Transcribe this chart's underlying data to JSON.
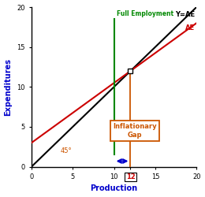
{
  "title": "",
  "xlabel": "Production",
  "ylabel": "Expenditures",
  "xlim": [
    0,
    20
  ],
  "ylim": [
    0,
    20
  ],
  "xticks": [
    0,
    5,
    10,
    15,
    20
  ],
  "yticks": [
    0,
    5,
    10,
    15,
    20
  ],
  "ytick_labels": [
    "0",
    "5",
    "10",
    "15",
    "20"
  ],
  "yae_slope": 1.0,
  "yae_intercept": 0.0,
  "ae_slope": 0.75,
  "ae_intercept": 3.0,
  "full_employment_x": 10,
  "intersection_x": 12,
  "intersection_y": 12,
  "yae_color": "#000000",
  "ae_color": "#cc0000",
  "full_employment_color": "#008800",
  "gap_arrow_color": "#0000cc",
  "gap_box_color": "#cc5500",
  "axis_label_color": "#0000cc",
  "angle_label_color": "#cc5500",
  "angle_label": "45°",
  "yae_label": "Y=AE",
  "ae_label": "AE",
  "full_employment_label": "Full Employment",
  "gap_label": "Inflationary\nGap",
  "xtick_12_color": "#cc0000",
  "intersection_marker_color": "#000000",
  "vertical_line_color": "#cc5500"
}
